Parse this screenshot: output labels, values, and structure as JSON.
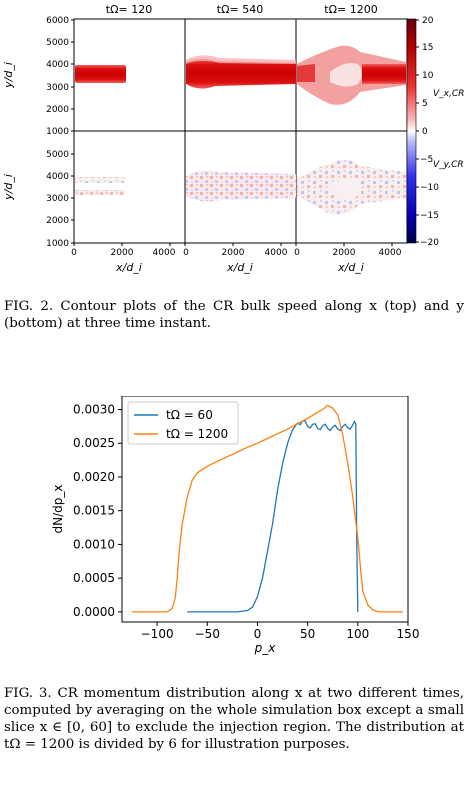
{
  "figure2": {
    "panel_titles": [
      "tΩ= 120",
      "tΩ= 540",
      "tΩ= 1200"
    ],
    "y_axis_label": "y/d_i",
    "x_axis_label": "x/d_i",
    "y_ticks_top": [
      "6000",
      "5000",
      "4000",
      "3000",
      "2000",
      "1000"
    ],
    "y_ticks_bottom": [
      "5000",
      "4000",
      "3000",
      "2000",
      "1000"
    ],
    "x_ticks": [
      "0",
      "2000",
      "4000"
    ],
    "colorbar_ticks": [
      "20",
      "15",
      "10",
      "5",
      "0",
      "−5",
      "−10",
      "−15",
      "−20"
    ],
    "colorbar_label_top": "V_x,CR",
    "colorbar_label_bottom": "V_y,CR",
    "colors": {
      "positive": "#cc0000",
      "negative": "#0000aa",
      "zero": "#ffffff"
    },
    "caption_label": "FIG. 2.",
    "caption_text": "Contour plots of the CR bulk speed along x (top) and y (bottom) at three time instant."
  },
  "figure3": {
    "chart_data": {
      "type": "line",
      "xlabel": "p_x",
      "ylabel": "dN/dp_x",
      "xlim": [
        -135,
        150
      ],
      "ylim": [
        -0.00015,
        0.0032
      ],
      "x_ticks": [
        -100,
        -50,
        0,
        50,
        100,
        150
      ],
      "y_ticks": [
        0.0,
        0.0005,
        0.001,
        0.0015,
        0.002,
        0.0025,
        0.003
      ],
      "x_tick_labels": [
        "−100",
        "−50",
        "0",
        "50",
        "100",
        "150"
      ],
      "y_tick_labels": [
        "0.0000",
        "0.0005",
        "0.0010",
        "0.0015",
        "0.0020",
        "0.0025",
        "0.0030"
      ],
      "legend_position": "top-left",
      "grid": false,
      "series": [
        {
          "name": "tΩ = 60",
          "color": "#1f77b4",
          "x": [
            -70,
            -20,
            -10,
            -5,
            0,
            5,
            10,
            15,
            20,
            25,
            30,
            35,
            40,
            45,
            50,
            55,
            60,
            65,
            70,
            75,
            80,
            85,
            90,
            95,
            98,
            99,
            100
          ],
          "y": [
            0.0,
            0.0,
            2e-05,
            7e-05,
            0.00023,
            0.0005,
            0.0009,
            0.0013,
            0.0018,
            0.0022,
            0.0025,
            0.0027,
            0.0028,
            0.00283,
            0.00275,
            0.00278,
            0.00272,
            0.00276,
            0.00272,
            0.00274,
            0.00271,
            0.00275,
            0.00273,
            0.00277,
            0.00279,
            0.001,
            0.0
          ]
        },
        {
          "name": "tΩ = 1200",
          "color": "#ff7f0e",
          "x": [
            -125,
            -90,
            -85,
            -82,
            -80,
            -78,
            -75,
            -70,
            -65,
            -60,
            -50,
            -40,
            -30,
            -20,
            -10,
            0,
            10,
            20,
            30,
            40,
            50,
            60,
            65,
            70,
            75,
            80,
            85,
            90,
            95,
            100,
            103,
            105,
            110,
            115,
            120,
            145
          ],
          "y": [
            0.0,
            0.0,
            5e-05,
            0.0002,
            0.0005,
            0.0009,
            0.0013,
            0.0017,
            0.00195,
            0.00206,
            0.00216,
            0.00223,
            0.0023,
            0.00237,
            0.00244,
            0.0025,
            0.00257,
            0.00264,
            0.00271,
            0.00279,
            0.00287,
            0.00296,
            0.003,
            0.00306,
            0.00302,
            0.00292,
            0.00262,
            0.0022,
            0.0017,
            0.0011,
            0.0006,
            0.0003,
            0.0001,
            3e-05,
            0.0,
            0.0
          ]
        }
      ]
    },
    "caption_label": "FIG. 3.",
    "caption_text": "CR momentum distribution along x at two different times, computed by averaging on the whole simulation box except a small slice x ∈ [0, 60] to exclude the injection region. The distribution at tΩ = 1200 is divided by 6 for illustration purposes."
  }
}
